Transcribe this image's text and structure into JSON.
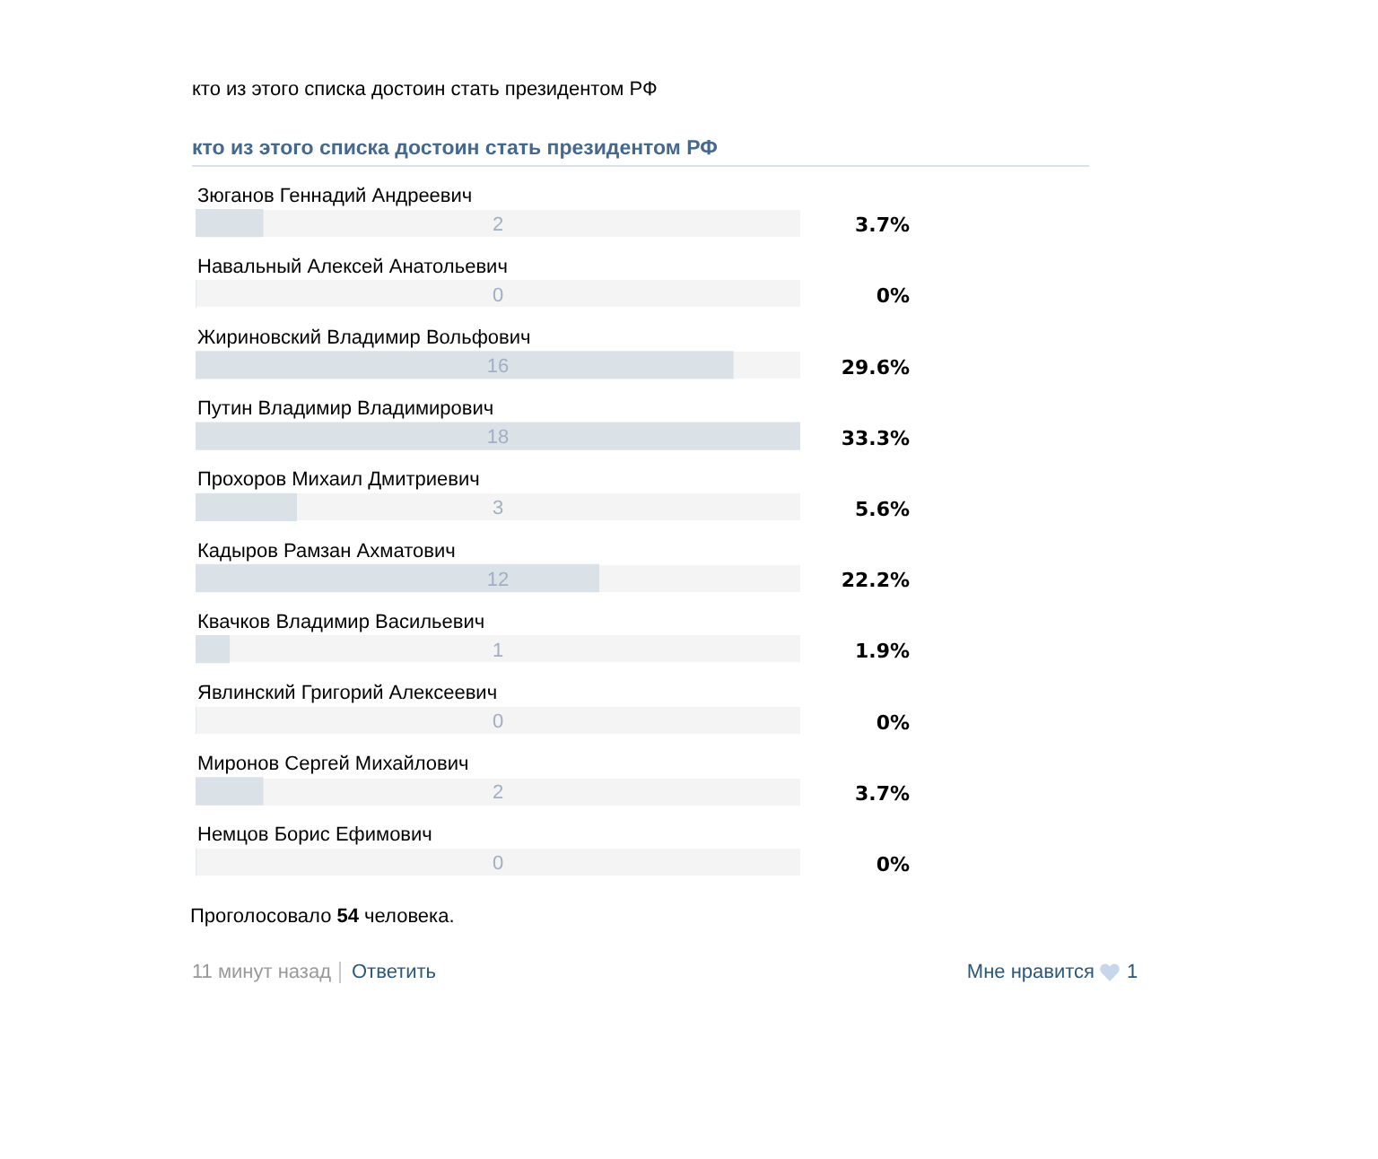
{
  "chart_data": {
    "type": "bar",
    "orientation": "horizontal",
    "title": "кто из этого списка достоин стать президентом РФ",
    "categories": [
      "Зюганов Геннадий Андреевич",
      "Навальный Алексей Анатольевич",
      "Жириновский Владимир Вольфович",
      "Путин Владимир Владимирович",
      "Прохоров Михаил Дмитриевич",
      "Кадыров Рамзан Ахматович",
      "Квачков Владимир Васильевич",
      "Явлинский Григорий Алексеевич",
      "Миронов Сергей Михайлович",
      "Немцов Борис Ефимович"
    ],
    "values": [
      2,
      0,
      16,
      18,
      3,
      12,
      1,
      0,
      2,
      0
    ],
    "color": "#dae2e8",
    "xlim": [
      0,
      18
    ],
    "tick_labels": "y",
    "data_labels": true,
    "annotations": [
      "кто из этого списка достоин стать президентом РФ",
      "3.7%",
      "0%",
      "29.6%",
      "33.3%",
      "5.6%",
      "22.2%",
      "1.9%",
      "0%",
      "3.7%",
      "0%",
      "Проголосовало 54 человека.",
      "11 минут назад",
      "Ответить",
      "Мне нравится",
      "1"
    ]
  }
}
